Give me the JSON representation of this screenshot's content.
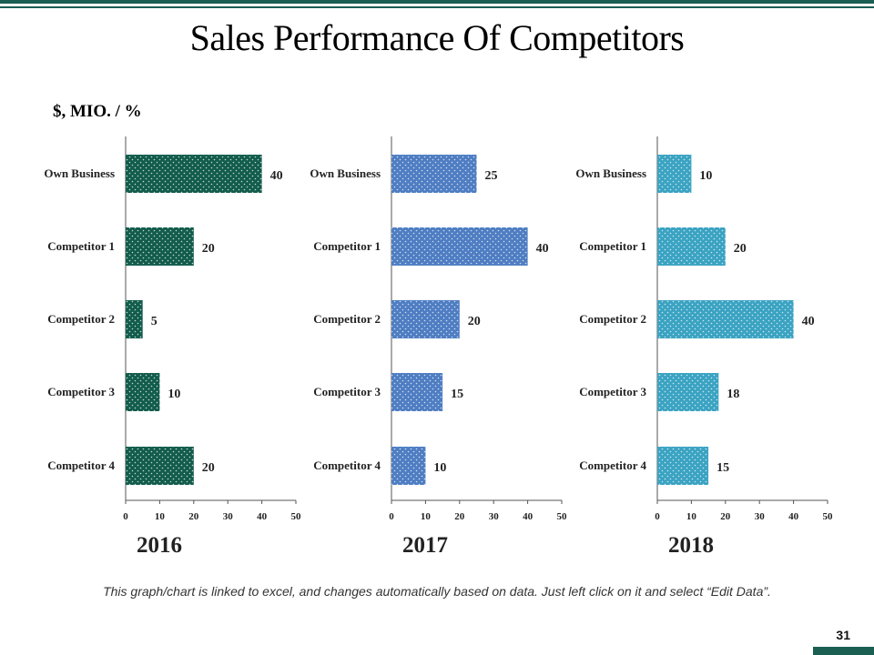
{
  "title": "Sales Performance Of Competitors",
  "units": "$, MIO. / %",
  "footnote": "This graph/chart is linked to excel, and changes automatically based on data. Just left click on it and select “Edit Data”.",
  "page_number": "31",
  "colors": {
    "accent": "#1b5e52",
    "series_2016": "#125c4c",
    "series_2017": "#4e7dc2",
    "series_2018": "#3ba3c2",
    "axis": "#555555"
  },
  "chart_data": [
    {
      "type": "bar",
      "orientation": "horizontal",
      "title": "2016",
      "categories": [
        "Own Business",
        "Competitor 1",
        "Competitor 2",
        "Competitor 3",
        "Competitor 4"
      ],
      "values": [
        40,
        20,
        5,
        10,
        20
      ],
      "xlim": [
        0,
        50
      ],
      "xticks": [
        0,
        10,
        20,
        30,
        40,
        50
      ],
      "grid": false
    },
    {
      "type": "bar",
      "orientation": "horizontal",
      "title": "2017",
      "categories": [
        "Own Business",
        "Competitor 1",
        "Competitor 2",
        "Competitor 3",
        "Competitor 4"
      ],
      "values": [
        25,
        40,
        20,
        15,
        10
      ],
      "xlim": [
        0,
        50
      ],
      "xticks": [
        0,
        10,
        20,
        30,
        40,
        50
      ],
      "grid": false
    },
    {
      "type": "bar",
      "orientation": "horizontal",
      "title": "2018",
      "categories": [
        "Own Business",
        "Competitor 1",
        "Competitor 2",
        "Competitor 3",
        "Competitor 4"
      ],
      "values": [
        10,
        20,
        40,
        18,
        15
      ],
      "xlim": [
        0,
        50
      ],
      "xticks": [
        0,
        10,
        20,
        30,
        40,
        50
      ],
      "grid": false
    }
  ]
}
